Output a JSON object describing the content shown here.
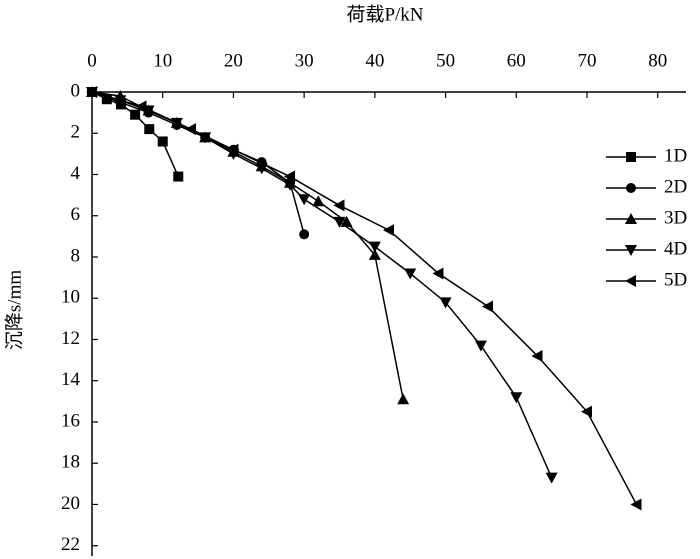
{
  "chart_data": {
    "type": "line",
    "x_label": "荷载P/kN",
    "y_label": "沉降s/mm",
    "xlim": [
      0,
      84
    ],
    "ylim": [
      0,
      22.5
    ],
    "y_inverted": true,
    "x_axis_position": "top",
    "xticks": [
      0,
      10,
      20,
      30,
      40,
      50,
      60,
      70,
      80
    ],
    "yticks": [
      0,
      2,
      4,
      6,
      8,
      10,
      12,
      14,
      16,
      18,
      20,
      22
    ],
    "legend": "right",
    "series": [
      {
        "name": "1D",
        "color": "#000000",
        "marker": "square",
        "x": [
          0,
          2.1,
          4.1,
          6.1,
          8.1,
          10,
          12.2
        ],
        "values": [
          0,
          0.35,
          0.6,
          1.1,
          1.8,
          2.4,
          4.1
        ]
      },
      {
        "name": "2D",
        "color": "#000000",
        "marker": "circle",
        "x": [
          0,
          4,
          8,
          12,
          16,
          20,
          24,
          28,
          30
        ],
        "values": [
          0,
          0.5,
          1.0,
          1.6,
          2.2,
          2.8,
          3.4,
          4.4,
          6.9
        ]
      },
      {
        "name": "3D",
        "color": "#000000",
        "marker": "triangle-up",
        "x": [
          0,
          4,
          8,
          12,
          16,
          20,
          24,
          28,
          32,
          36,
          40,
          44
        ],
        "values": [
          0,
          0.2,
          0.9,
          1.5,
          2.2,
          2.9,
          3.6,
          4.4,
          5.3,
          6.3,
          7.9,
          14.9
        ]
      },
      {
        "name": "4D",
        "color": "#000000",
        "marker": "triangle-down",
        "x": [
          0,
          4,
          8,
          12,
          16,
          20,
          24,
          28,
          30,
          35,
          40,
          45,
          50,
          55,
          60,
          65
        ],
        "values": [
          0,
          0.4,
          0.9,
          1.5,
          2.2,
          3.0,
          3.7,
          4.5,
          5.2,
          6.3,
          7.5,
          8.8,
          10.2,
          12.3,
          14.8,
          18.7
        ]
      },
      {
        "name": "5D",
        "color": "#000000",
        "marker": "triangle-left",
        "x": [
          0,
          7,
          14,
          20,
          28,
          35,
          42,
          49,
          56,
          63,
          70,
          77
        ],
        "values": [
          0,
          0.7,
          1.8,
          2.8,
          4.1,
          5.5,
          6.7,
          8.8,
          10.4,
          12.8,
          15.5,
          20.0
        ]
      }
    ]
  }
}
